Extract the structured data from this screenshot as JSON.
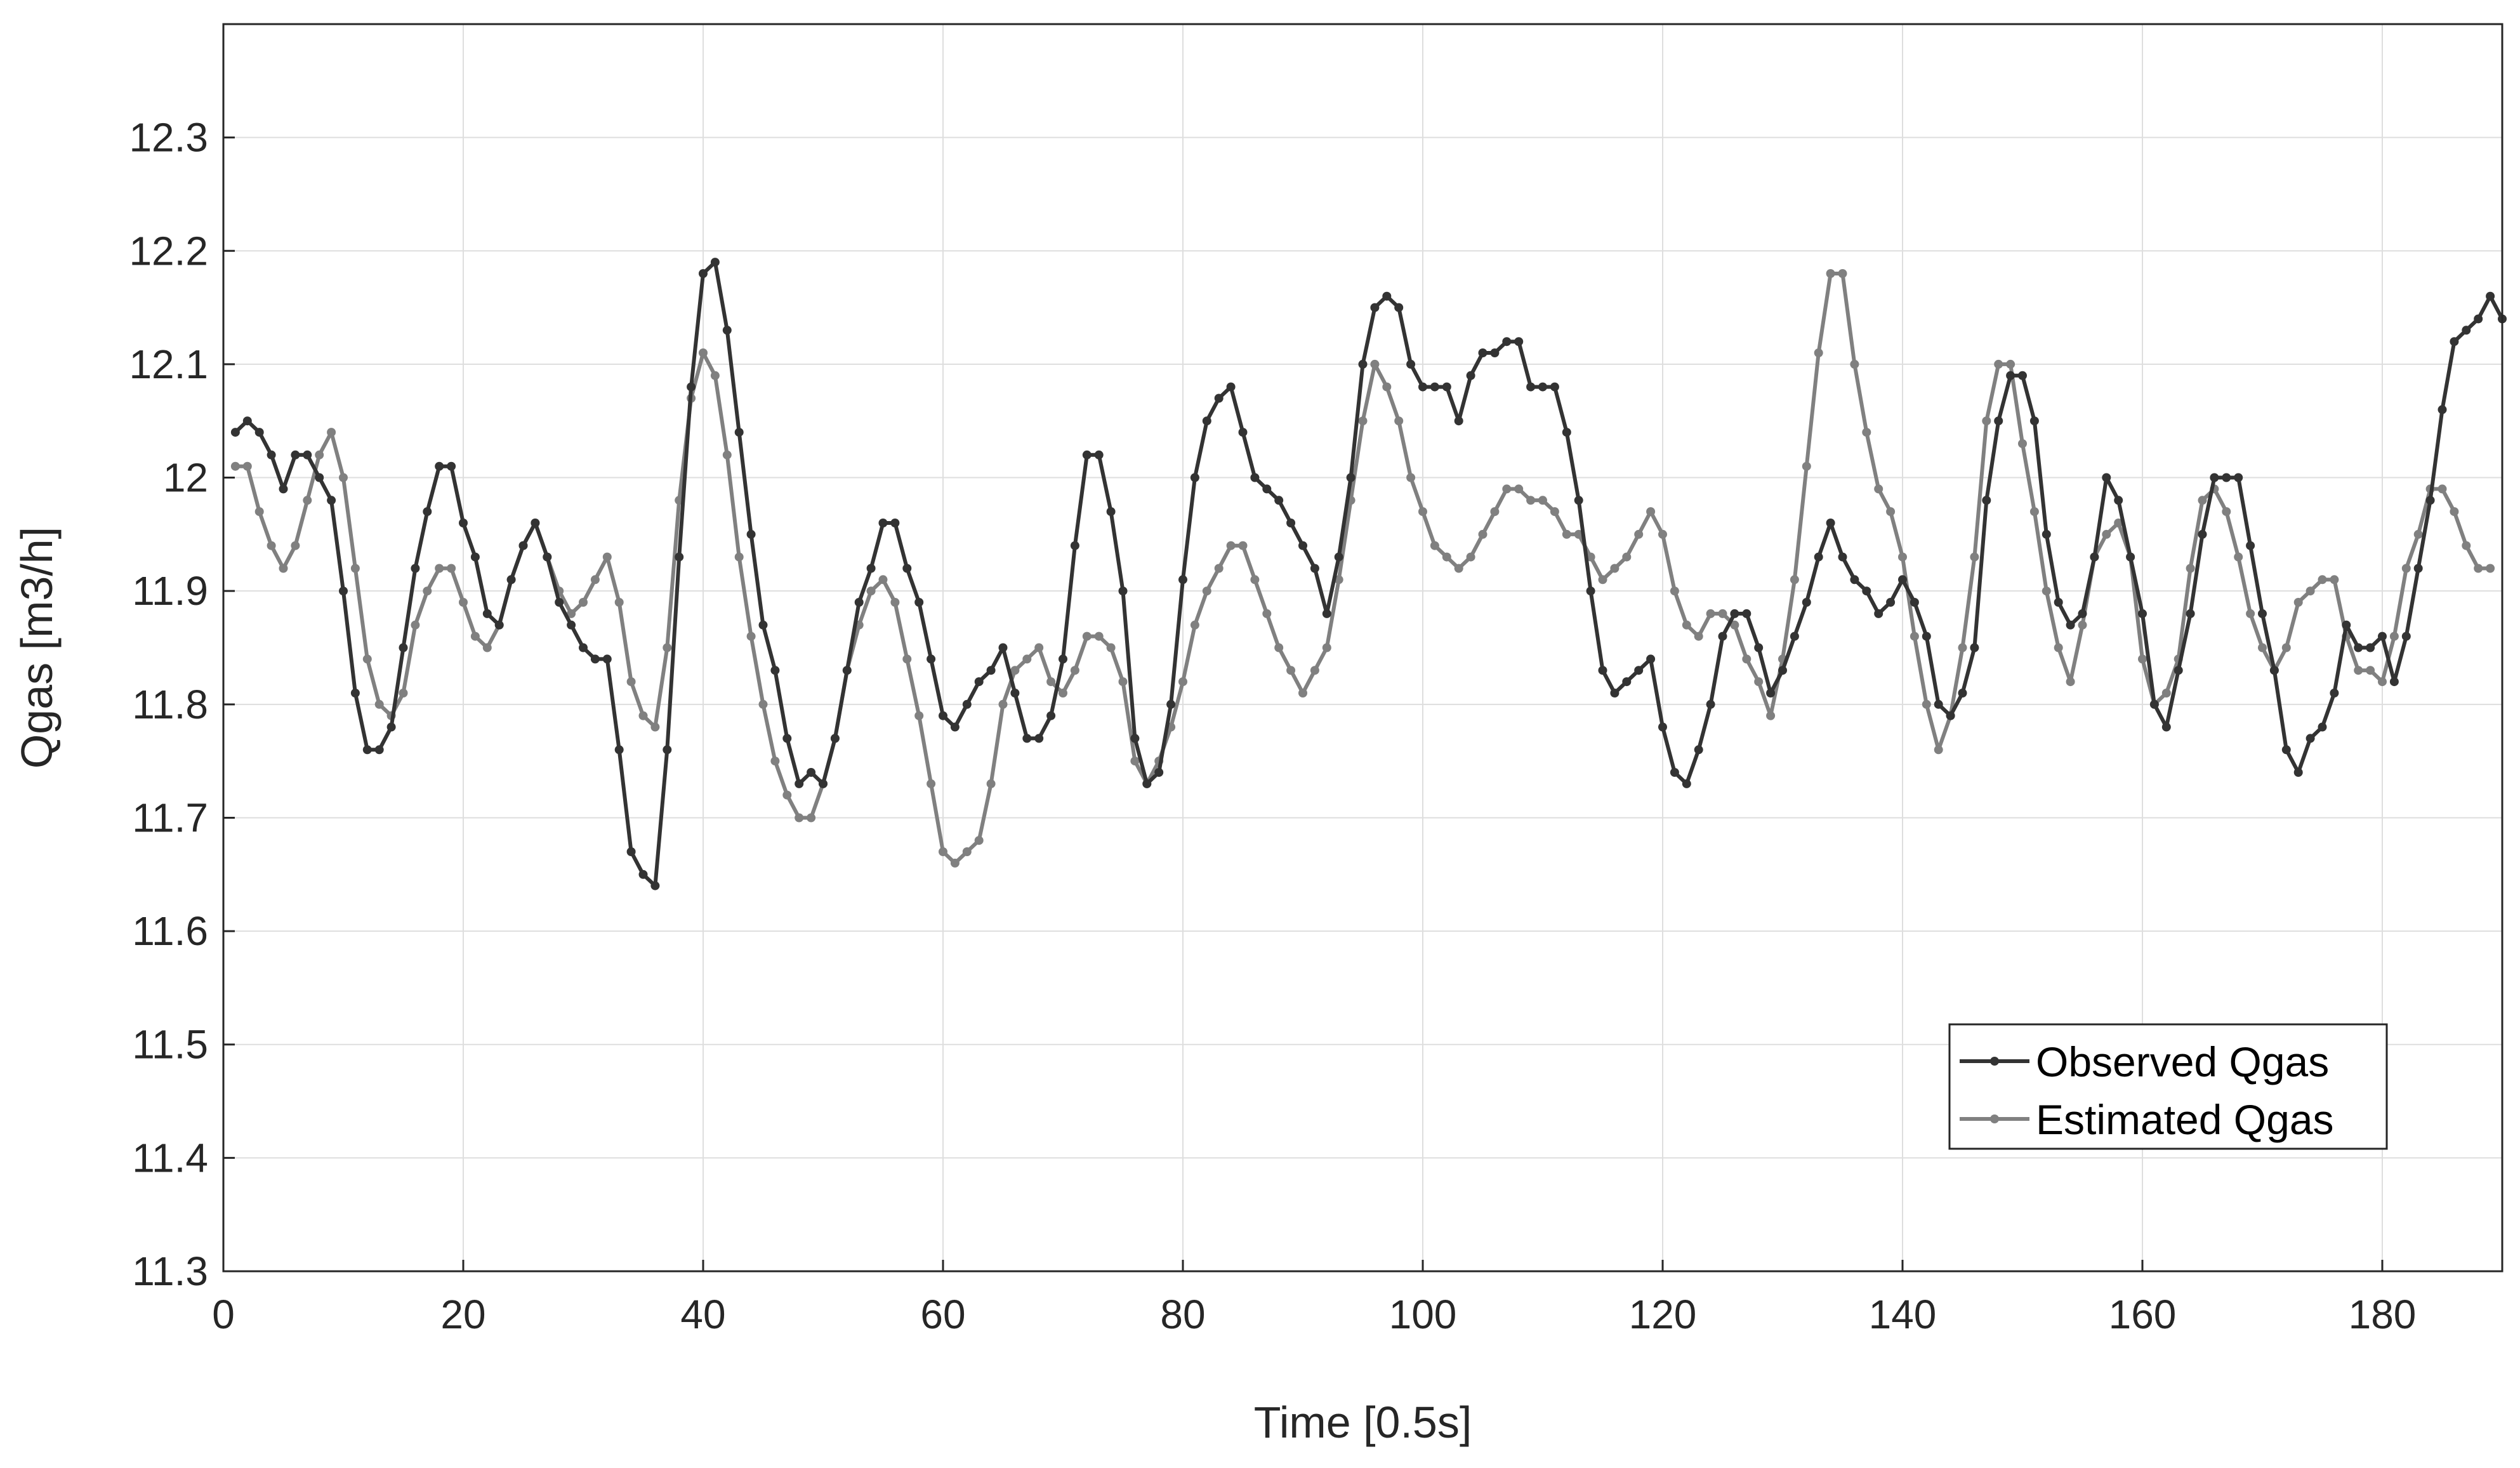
{
  "chart_data": {
    "type": "line",
    "title": "",
    "xlabel": "Time [0.5s]",
    "ylabel": "Qgas [m3/h]",
    "xlim": [
      0,
      190
    ],
    "ylim": [
      11.3,
      12.4
    ],
    "xticks": [
      0,
      20,
      40,
      60,
      80,
      100,
      120,
      140,
      160,
      180
    ],
    "xtick_labels": [
      "0",
      "20",
      "40",
      "60",
      "80",
      "100",
      "120",
      "140",
      "160",
      "180"
    ],
    "yticks": [
      11.3,
      11.4,
      11.5,
      11.6,
      11.7,
      11.8,
      11.9,
      12.0,
      12.1,
      12.2,
      12.3
    ],
    "ytick_labels": [
      "11.3",
      "11.4",
      "11.5",
      "11.6",
      "11.7",
      "11.8",
      "11.9",
      "12",
      "12.1",
      "12.2",
      "12.3"
    ],
    "grid": true,
    "legend_position": "bottom-right",
    "x_start": 1,
    "series": [
      {
        "name": "Observed Qgas",
        "color": "#333333",
        "values": [
          12.04,
          12.05,
          12.04,
          12.02,
          11.99,
          12.02,
          12.02,
          12.0,
          11.98,
          11.9,
          11.81,
          11.76,
          11.76,
          11.78,
          11.85,
          11.92,
          11.97,
          12.01,
          12.01,
          11.96,
          11.93,
          11.88,
          11.87,
          11.91,
          11.94,
          11.96,
          11.93,
          11.89,
          11.87,
          11.85,
          11.84,
          11.84,
          11.76,
          11.67,
          11.65,
          11.64,
          11.76,
          11.93,
          12.08,
          12.18,
          12.19,
          12.13,
          12.04,
          11.95,
          11.87,
          11.83,
          11.77,
          11.73,
          11.74,
          11.73,
          11.77,
          11.83,
          11.89,
          11.92,
          11.96,
          11.96,
          11.92,
          11.89,
          11.84,
          11.79,
          11.78,
          11.8,
          11.82,
          11.83,
          11.85,
          11.81,
          11.77,
          11.77,
          11.79,
          11.84,
          11.94,
          12.02,
          12.02,
          11.97,
          11.9,
          11.77,
          11.73,
          11.74,
          11.8,
          11.91,
          12.0,
          12.05,
          12.07,
          12.08,
          12.04,
          12.0,
          11.99,
          11.98,
          11.96,
          11.94,
          11.92,
          11.88,
          11.93,
          12.0,
          12.1,
          12.15,
          12.16,
          12.15,
          12.1,
          12.08,
          12.08,
          12.08,
          12.05,
          12.09,
          12.11,
          12.11,
          12.12,
          12.12,
          12.08,
          12.08,
          12.08,
          12.04,
          11.98,
          11.9,
          11.83,
          11.81,
          11.82,
          11.83,
          11.84,
          11.78,
          11.74,
          11.73,
          11.76,
          11.8,
          11.86,
          11.88,
          11.88,
          11.85,
          11.81,
          11.83,
          11.86,
          11.89,
          11.93,
          11.96,
          11.93,
          11.91,
          11.9,
          11.88,
          11.89,
          11.91,
          11.89,
          11.86,
          11.8,
          11.79,
          11.81,
          11.85,
          11.98,
          12.05,
          12.09,
          12.09,
          12.05,
          11.95,
          11.89,
          11.87,
          11.88,
          11.93,
          12.0,
          11.98,
          11.93,
          11.88,
          11.8,
          11.78,
          11.83,
          11.88,
          11.95,
          12.0,
          12.0,
          12.0,
          11.94,
          11.88,
          11.83,
          11.76,
          11.74,
          11.77,
          11.78,
          11.81,
          11.87,
          11.85,
          11.85,
          11.86,
          11.82,
          11.86,
          11.92,
          11.98,
          12.06,
          12.12,
          12.13,
          12.14,
          12.16,
          12.14
        ]
      },
      {
        "name": "Estimated Qgas",
        "color": "#808080",
        "values": [
          12.01,
          12.01,
          11.97,
          11.94,
          11.92,
          11.94,
          11.98,
          12.02,
          12.04,
          12.0,
          11.92,
          11.84,
          11.8,
          11.79,
          11.81,
          11.87,
          11.9,
          11.92,
          11.92,
          11.89,
          11.86,
          11.85,
          11.87,
          11.91,
          11.94,
          11.96,
          11.93,
          11.9,
          11.88,
          11.89,
          11.91,
          11.93,
          11.89,
          11.82,
          11.79,
          11.78,
          11.85,
          11.98,
          12.07,
          12.11,
          12.09,
          12.02,
          11.93,
          11.86,
          11.8,
          11.75,
          11.72,
          11.7,
          11.7,
          11.73,
          11.77,
          11.83,
          11.87,
          11.9,
          11.91,
          11.89,
          11.84,
          11.79,
          11.73,
          11.67,
          11.66,
          11.67,
          11.68,
          11.73,
          11.8,
          11.83,
          11.84,
          11.85,
          11.82,
          11.81,
          11.83,
          11.86,
          11.86,
          11.85,
          11.82,
          11.75,
          11.73,
          11.75,
          11.78,
          11.82,
          11.87,
          11.9,
          11.92,
          11.94,
          11.94,
          11.91,
          11.88,
          11.85,
          11.83,
          11.81,
          11.83,
          11.85,
          11.91,
          11.98,
          12.05,
          12.1,
          12.08,
          12.05,
          12.0,
          11.97,
          11.94,
          11.93,
          11.92,
          11.93,
          11.95,
          11.97,
          11.99,
          11.99,
          11.98,
          11.98,
          11.97,
          11.95,
          11.95,
          11.93,
          11.91,
          11.92,
          11.93,
          11.95,
          11.97,
          11.95,
          11.9,
          11.87,
          11.86,
          11.88,
          11.88,
          11.87,
          11.84,
          11.82,
          11.79,
          11.84,
          11.91,
          12.01,
          12.11,
          12.18,
          12.18,
          12.1,
          12.04,
          11.99,
          11.97,
          11.93,
          11.86,
          11.8,
          11.76,
          11.79,
          11.85,
          11.93,
          12.05,
          12.1,
          12.1,
          12.03,
          11.97,
          11.9,
          11.85,
          11.82,
          11.87,
          11.93,
          11.95,
          11.96,
          11.93,
          11.84,
          11.8,
          11.81,
          11.84,
          11.92,
          11.98,
          11.99,
          11.97,
          11.93,
          11.88,
          11.85,
          11.83,
          11.85,
          11.89,
          11.9,
          11.91,
          11.91,
          11.86,
          11.83,
          11.83,
          11.82,
          11.86,
          11.92,
          11.95,
          11.99,
          11.99,
          11.97,
          11.94,
          11.92,
          11.92
        ]
      }
    ]
  }
}
